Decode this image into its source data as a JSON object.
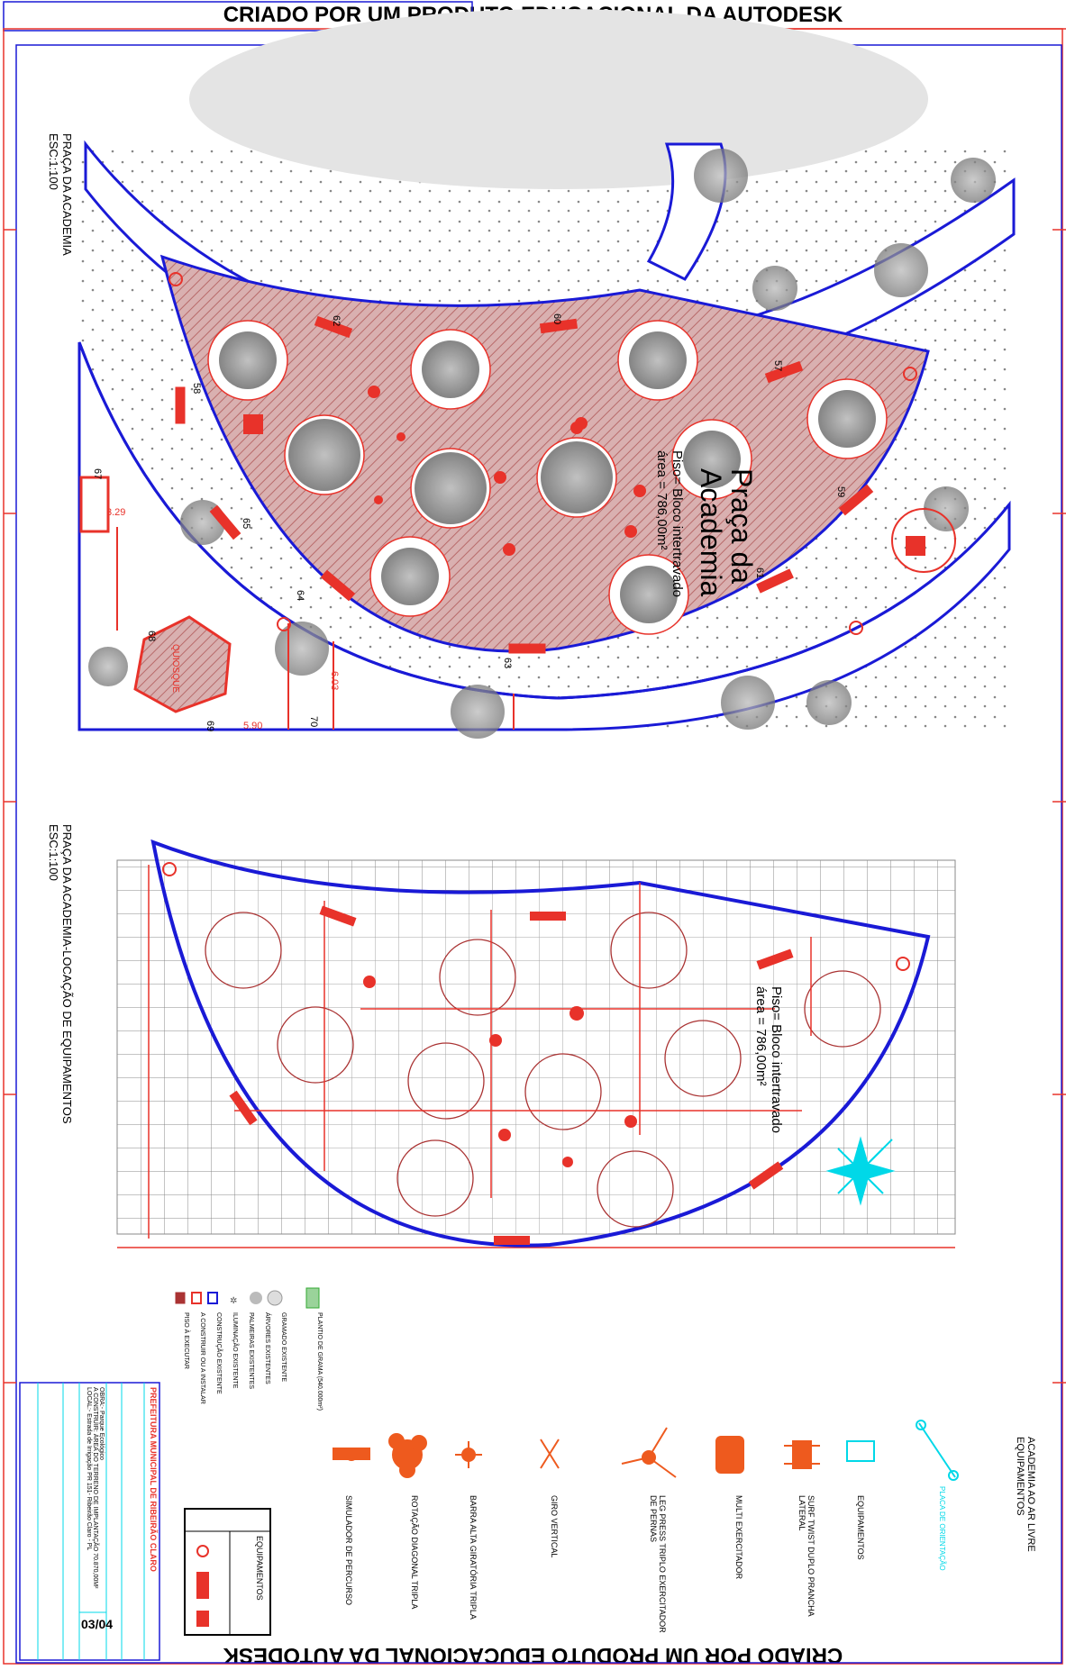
{
  "banner": {
    "text": "CRIADO POR UM PRODUTO EDUCACIONAL DA AUTODESK"
  },
  "plan1": {
    "title": "PRAÇA DA ACADEMIA",
    "scale": "ESC:1:100",
    "area_name_1": "Praça da",
    "area_name_2": "Academia",
    "floor": "Piso= Bloco intertravado",
    "area": "área = 786,00m²",
    "kiosk_label": "QUIOSQUE",
    "dims": [
      "3.29",
      "5.90",
      "6.03"
    ],
    "bench_numbers": [
      "62",
      "60",
      "57",
      "58",
      "59",
      "61",
      "63",
      "64",
      "65",
      "67",
      "68",
      "69",
      "70"
    ]
  },
  "plan2": {
    "title": "PRAÇA DA ACADEMIA-LOCAÇÃO DE EQUIPAMENTOS",
    "scale": "ESC:1:100",
    "floor": "Piso= Bloco intertravado",
    "area": "área = 786,00m²"
  },
  "legend": {
    "items": [
      "PISO À EXECUTAR",
      "A CONSTRUIR OU A INSTALAR",
      "CONSTRUÇÃO EXISTENTE",
      "ILUMINAÇÃO EXISTENTE",
      "PALMEIRAS EXISTENTES",
      "ÁRVORES EXISTENTES",
      "GRAMADO EXISTENTE",
      "PLANTIO DE GRAMA (540.000m²)"
    ]
  },
  "equipment": {
    "heading_1": "ACADEMIA AO AR LIVRE",
    "heading_2": "EQUIPAMENTOS",
    "items": [
      "PLACA DE ORIENTAÇÃO",
      "EQUIPAMENTOS",
      "SURF TWIST DUPLO PRANCHA LATERAL",
      "MULTI EXERCITADOR",
      "LEG PRESS TRIPLO EXERCITADOR DE PERNAS",
      "GIRO VERTICAL",
      "BARRA ALTA GIRATÓRIA TRIPLA",
      "ROTAÇÃO DIAGONAL TRIPLA",
      "SIMULADOR DE PERCURSO"
    ],
    "table_title": "EQUIPAMENTOS"
  },
  "titleblock": {
    "org": "PREFEITURA MUNICIPAL DE RIBEIRÃO CLARO",
    "works": "OBRA:- Parque Ecológico",
    "desc": "A CONSTRUIR: ÁREA DO TERRENO DE IMPLANTAÇÃO 70.870,00M²",
    "local": "LOCAL:- Estrada de Irrigação PR 151- Ribeirão Claro - PL",
    "sheet": "03/04"
  },
  "colors": {
    "red": "#e8322a",
    "blue": "#1a1ad6",
    "cyan": "#00d8e8",
    "gray": "#9a9a9a",
    "hatch": "#c98a8a"
  }
}
